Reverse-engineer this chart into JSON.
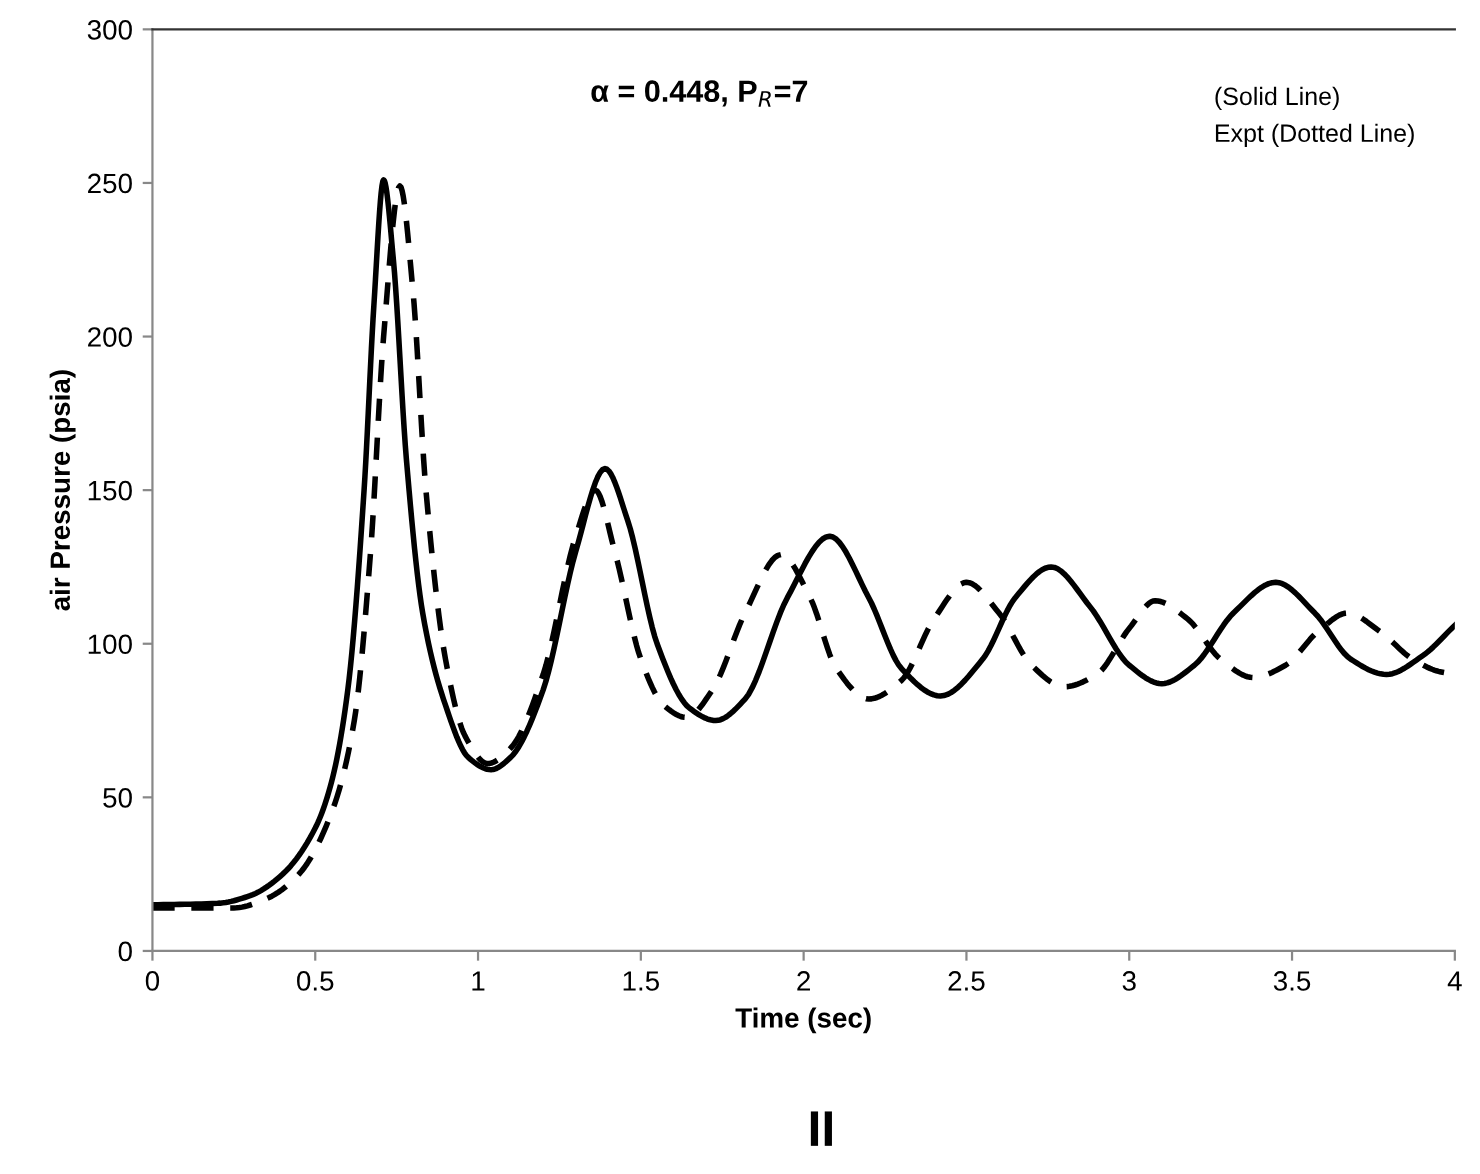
{
  "chart_data": {
    "type": "line",
    "xlabel": "Time (sec)",
    "ylabel": "air Pressure (psia)",
    "xlim": [
      0,
      4
    ],
    "ylim": [
      0,
      300
    ],
    "xticks": [
      0,
      0.5,
      1,
      1.5,
      2,
      2.5,
      3,
      3.5,
      4
    ],
    "yticks": [
      0,
      50,
      100,
      150,
      200,
      250,
      300
    ],
    "grid": false,
    "marker": "none",
    "annotations": [
      "α = 0.448, P$_{R}$=7",
      "II",
      "(Solid Line)",
      "Expt (Dotted Line)"
    ],
    "series": [
      {
        "color": "#000000",
        "line_style": "solid",
        "x": [
          0,
          0.2,
          0.3,
          0.4,
          0.5,
          0.55,
          0.6,
          0.65,
          0.68,
          0.71,
          0.74,
          0.78,
          0.83,
          0.9,
          0.97,
          1.04,
          1.1,
          1.2,
          1.3,
          1.39,
          1.46,
          1.55,
          1.65,
          1.73,
          1.82,
          1.95,
          2.08,
          2.2,
          2.3,
          2.42,
          2.55,
          2.65,
          2.76,
          2.88,
          3.0,
          3.1,
          3.2,
          3.32,
          3.45,
          3.57,
          3.68,
          3.79,
          3.9,
          4.0
        ],
        "values": [
          15,
          15.5,
          18,
          25,
          40,
          55,
          85,
          150,
          210,
          251,
          225,
          160,
          110,
          80,
          63,
          59,
          63,
          85,
          130,
          157,
          140,
          100,
          79,
          75,
          82,
          115,
          135,
          115,
          92,
          83,
          95,
          115,
          125,
          112,
          93,
          87,
          93,
          110,
          120,
          110,
          95,
          90,
          96,
          106
        ]
      },
      {
        "color": "#000000",
        "line_style": "dashed",
        "x": [
          0,
          0.25,
          0.35,
          0.45,
          0.55,
          0.62,
          0.67,
          0.71,
          0.76,
          0.8,
          0.84,
          0.9,
          0.96,
          1.03,
          1.1,
          1.2,
          1.3,
          1.36,
          1.42,
          1.5,
          1.57,
          1.64,
          1.72,
          1.82,
          1.93,
          2.02,
          2.1,
          2.2,
          2.3,
          2.4,
          2.5,
          2.6,
          2.7,
          2.8,
          2.9,
          3.0,
          3.08,
          3.18,
          3.28,
          3.38,
          3.48,
          3.58,
          3.67,
          3.77,
          3.87,
          3.95,
          4.0
        ],
        "values": [
          14,
          14,
          17,
          25,
          45,
          75,
          130,
          200,
          249,
          215,
          150,
          95,
          70,
          61,
          66,
          90,
          135,
          150,
          130,
          95,
          80,
          76,
          85,
          110,
          129,
          115,
          92,
          82,
          88,
          108,
          120,
          110,
          93,
          86,
          90,
          105,
          114,
          108,
          95,
          89,
          93,
          104,
          110,
          104,
          95,
          91,
          90
        ]
      }
    ]
  }
}
